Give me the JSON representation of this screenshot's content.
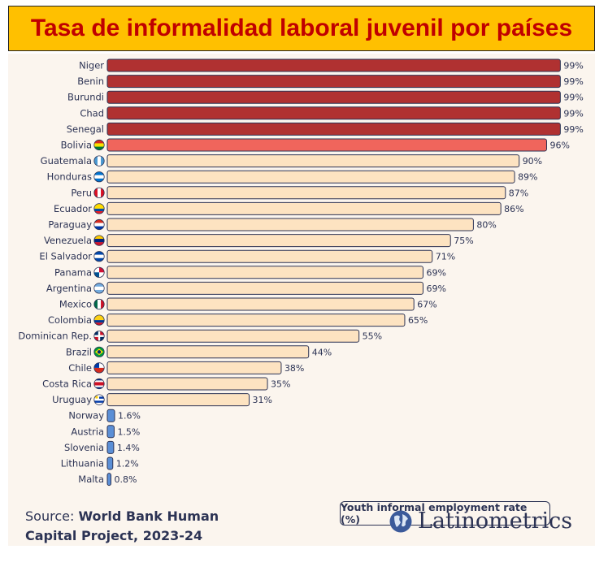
{
  "title": "Tasa de informalidad laboral juvenil por países",
  "legend_label": "Youth informal employment rate (%)",
  "source": {
    "prefix": "Source: ",
    "line1": "World Bank Human",
    "line2": "Capital Project, 2023-24"
  },
  "brand": {
    "name": "Latinometrics",
    "icon": "globe-icon"
  },
  "colors": {
    "dark_red": "#b03131",
    "light_red": "#f0655c",
    "beige": "#fde3c1",
    "blue": "#5b8fd6",
    "stroke": "#2c3354",
    "text": "#2c3354"
  },
  "chart_data": {
    "type": "bar",
    "orientation": "horizontal",
    "title": "Youth informal employment rate (%)",
    "xlim": [
      0,
      100
    ],
    "categories": [
      "Niger",
      "Benin",
      "Burundi",
      "Chad",
      "Senegal",
      "Bolivia",
      "Guatemala",
      "Honduras",
      "Peru",
      "Ecuador",
      "Paraguay",
      "Venezuela",
      "El Salvador",
      "Panama",
      "Argentina",
      "Mexico",
      "Colombia",
      "Dominican Rep.",
      "Brazil",
      "Chile",
      "Costa Rica",
      "Uruguay",
      "Norway",
      "Austria",
      "Slovenia",
      "Lithuania",
      "Malta"
    ],
    "values": [
      99,
      99,
      99,
      99,
      99,
      96,
      90,
      89,
      87,
      86,
      80,
      75,
      71,
      69,
      69,
      67,
      65,
      55,
      44,
      38,
      35,
      31,
      1.6,
      1.5,
      1.4,
      1.2,
      0.8
    ],
    "labels": [
      "99%",
      "99%",
      "99%",
      "99%",
      "99%",
      "96%",
      "90%",
      "89%",
      "87%",
      "86%",
      "80%",
      "75%",
      "71%",
      "69%",
      "69%",
      "67%",
      "65%",
      "55%",
      "44%",
      "38%",
      "35%",
      "31%",
      "1.6%",
      "1.5%",
      "1.4%",
      "1.2%",
      "0.8%"
    ],
    "groups": [
      "africa",
      "africa",
      "africa",
      "africa",
      "africa",
      "bolivia",
      "latam",
      "latam",
      "latam",
      "latam",
      "latam",
      "latam",
      "latam",
      "latam",
      "latam",
      "latam",
      "latam",
      "latam",
      "latam",
      "latam",
      "latam",
      "latam",
      "europe",
      "europe",
      "europe",
      "europe",
      "europe"
    ],
    "flags": [
      "",
      "",
      "",
      "",
      "",
      "bolivia-flag-icon",
      "guatemala-flag-icon",
      "honduras-flag-icon",
      "peru-flag-icon",
      "ecuador-flag-icon",
      "paraguay-flag-icon",
      "venezuela-flag-icon",
      "el-salvador-flag-icon",
      "panama-flag-icon",
      "argentina-flag-icon",
      "mexico-flag-icon",
      "colombia-flag-icon",
      "dominican-rep-flag-icon",
      "brazil-flag-icon",
      "chile-flag-icon",
      "costa-rica-flag-icon",
      "uruguay-flag-icon",
      "",
      "",
      "",
      "",
      ""
    ]
  }
}
